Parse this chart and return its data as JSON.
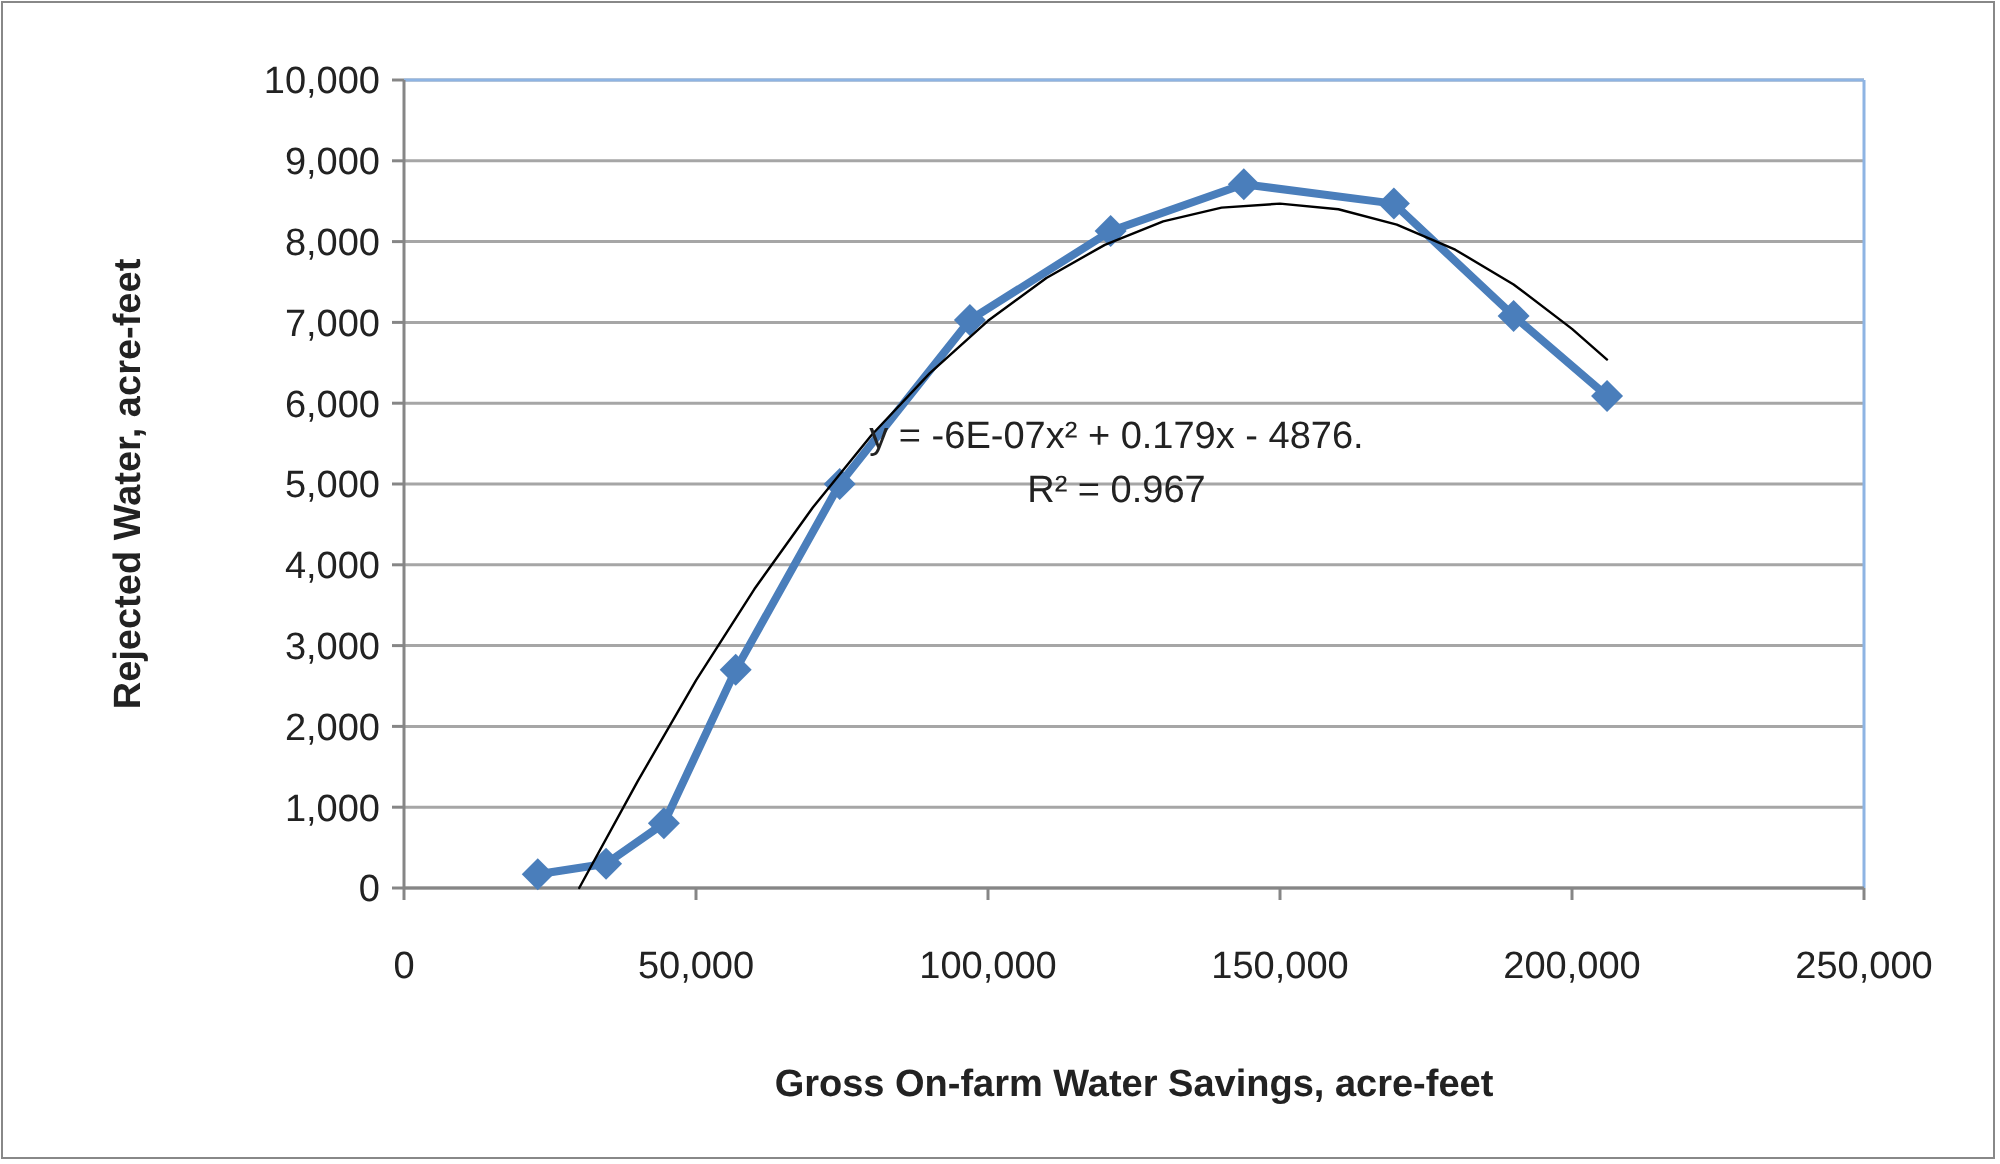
{
  "chart_data": {
    "type": "line",
    "xlabel": "Gross On-farm Water Savings, acre-feet",
    "ylabel": "Rejected Water, acre-feet",
    "xlim": [
      0,
      250000
    ],
    "xticks": [
      {
        "value": 0,
        "label": "0"
      },
      {
        "value": 50000,
        "label": "50,000"
      },
      {
        "value": 100000,
        "label": "100,000"
      },
      {
        "value": 150000,
        "label": "150,000"
      },
      {
        "value": 200000,
        "label": "200,000"
      },
      {
        "value": 250000,
        "label": "250,000"
      }
    ],
    "ylim": [
      0,
      10000
    ],
    "yticks": [
      {
        "value": 0,
        "label": "0"
      },
      {
        "value": 1000,
        "label": "1,000"
      },
      {
        "value": 2000,
        "label": "2,000"
      },
      {
        "value": 3000,
        "label": "3,000"
      },
      {
        "value": 4000,
        "label": "4,000"
      },
      {
        "value": 5000,
        "label": "5,000"
      },
      {
        "value": 6000,
        "label": "6,000"
      },
      {
        "value": 7000,
        "label": "7,000"
      },
      {
        "value": 8000,
        "label": "8,000"
      },
      {
        "value": 9000,
        "label": "9,000"
      },
      {
        "value": 10000,
        "label": "10,000"
      }
    ],
    "grid": "y",
    "annotations": [
      "y = -6E-07x² + 0.179x - 4876.",
      "R² = 0.967"
    ],
    "series": [
      {
        "color": "#4a7ebb",
        "marker": "diamond",
        "x": [
          22900,
          34600,
          44500,
          56800,
          74600,
          96900,
          121000,
          143800,
          169500,
          190000,
          206000
        ],
        "values": [
          170,
          300,
          800,
          2700,
          5000,
          7030,
          8130,
          8710,
          8470,
          7080,
          6090
        ]
      },
      {
        "color": "#000000",
        "marker": "none",
        "x": [
          30000,
          40000,
          50000,
          60000,
          70000,
          80000,
          90000,
          100000,
          110000,
          120000,
          130000,
          140000,
          150000,
          160000,
          170000,
          180000,
          190000,
          200000,
          206000
        ],
        "values": [
          0,
          1320,
          2570,
          3700,
          4710,
          5600,
          6370,
          7020,
          7550,
          7960,
          8250,
          8420,
          8470,
          8400,
          8210,
          7900,
          7470,
          6920,
          6540
        ]
      }
    ]
  }
}
